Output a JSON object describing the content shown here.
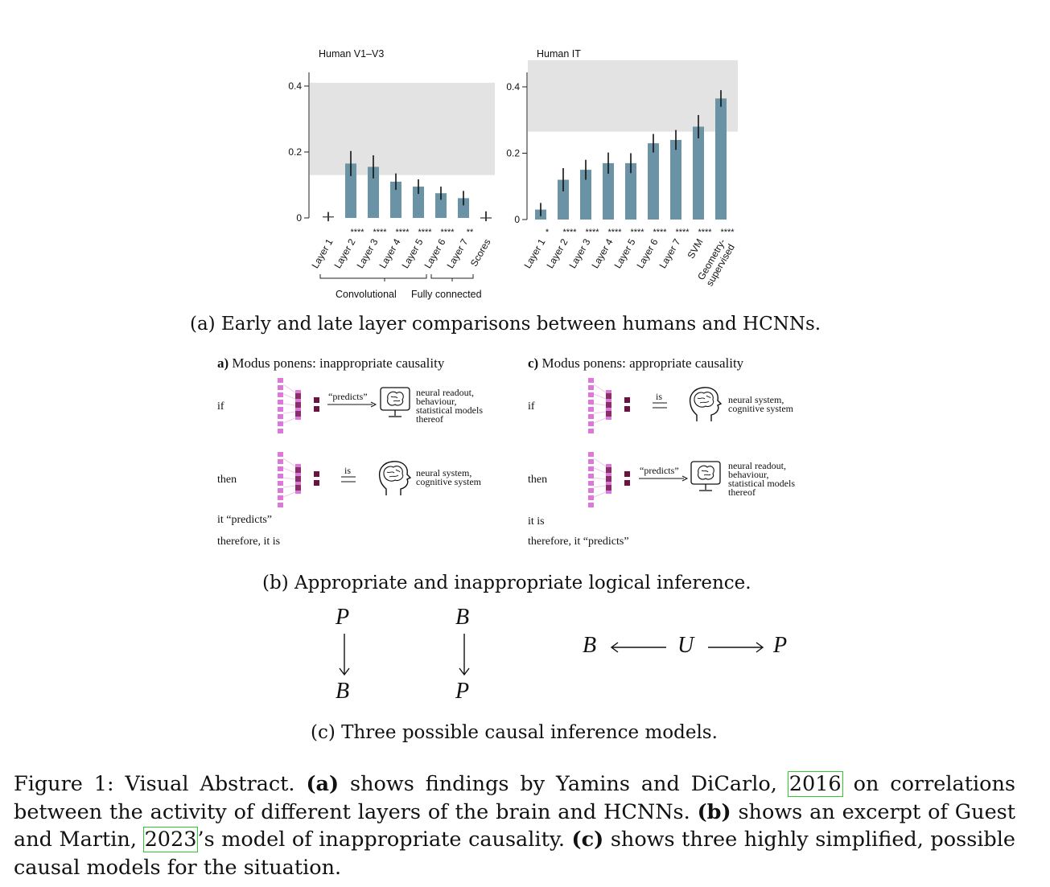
{
  "panel_a": {
    "chart_data": [
      {
        "type": "bar",
        "title": "Human V1–V3",
        "categories": [
          "Layer 1",
          "Layer 2",
          "Layer 3",
          "Layer 4",
          "Layer 5",
          "Layer 6",
          "Layer 7",
          "Scores"
        ],
        "values": [
          0.003,
          0.165,
          0.155,
          0.11,
          0.095,
          0.075,
          0.06,
          0.0
        ],
        "errors": [
          0.015,
          0.038,
          0.035,
          0.025,
          0.022,
          0.02,
          0.022,
          0.02
        ],
        "noise_ceiling": [
          0.13,
          0.41
        ],
        "ylim": [
          0,
          0.45
        ],
        "yticks": [
          "0",
          "0.2",
          "0.4"
        ],
        "significance": [
          "",
          "****",
          "****",
          "****",
          "****",
          "****",
          "**",
          ""
        ],
        "groups": [
          {
            "label": "Convolutional"
          },
          {
            "label": "Fully connected"
          }
        ],
        "bar_color": "#6b93a6",
        "ceiling_color": "#e3e3e3"
      },
      {
        "type": "bar",
        "title": "Human IT",
        "categories": [
          "Layer 1",
          "Layer 2",
          "Layer 3",
          "Layer 4",
          "Layer 5",
          "Layer 6",
          "Layer 7",
          "SVM",
          "Geometry-\nsupervised"
        ],
        "values": [
          0.03,
          0.12,
          0.15,
          0.17,
          0.17,
          0.23,
          0.24,
          0.28,
          0.365
        ],
        "errors": [
          0.02,
          0.035,
          0.03,
          0.032,
          0.03,
          0.028,
          0.03,
          0.035,
          0.025
        ],
        "noise_ceiling": [
          0.265,
          0.48
        ],
        "ylim": [
          0,
          0.45
        ],
        "yticks": [
          "0",
          "0.2",
          "0.4"
        ],
        "significance": [
          "*",
          "****",
          "****",
          "****",
          "****",
          "****",
          "****",
          "****",
          "****"
        ],
        "bar_color": "#6b93a6",
        "ceiling_color": "#e3e3e3"
      }
    ],
    "caption": "(a) Early and late layer comparisons between humans and HCNNs."
  },
  "panel_b": {
    "left": {
      "title_bold": "a)",
      "title_rest": "Modus ponens: inappropriate causality",
      "if_label": "if",
      "then_label": "then",
      "if_arrow": "“predicts”",
      "if_target": [
        "neural readout,",
        "behaviour,",
        "statistical models",
        "thereof"
      ],
      "then_arrow": "is",
      "then_target": [
        "neural system,",
        "cognitive system"
      ],
      "conclusion1": "it “predicts”",
      "conclusion2": "therefore, it is"
    },
    "right": {
      "title_bold": "c)",
      "title_rest": "Modus ponens: appropriate causality",
      "if_label": "if",
      "then_label": "then",
      "if_arrow": "is",
      "if_target": [
        "neural system,",
        "cognitive system"
      ],
      "then_arrow": "“predicts”",
      "then_target": [
        "neural readout,",
        "behaviour,",
        "statistical models",
        "thereof"
      ],
      "conclusion1": "it is",
      "conclusion2": "therefore, it “predicts”"
    },
    "colors": {
      "light": "#dc78dc",
      "dark": "#6b1340"
    },
    "caption": "(b) Appropriate and inappropriate logical inference."
  },
  "panel_c": {
    "model1": {
      "top": "P",
      "bottom": "B"
    },
    "model2": {
      "top": "B",
      "bottom": "P"
    },
    "model3": {
      "left": "B",
      "middle": "U",
      "right": "P"
    },
    "caption": "(c) Three possible causal inference models."
  },
  "figure_caption": {
    "label": "Figure 1:",
    "t1": "Visual Abstract.",
    "a_bold": "(a)",
    "t2": "shows findings by Yamins and DiCarlo,",
    "cite1": "2016",
    "t3": "on correlations between the activity of different layers of the brain and HCNNs.",
    "b_bold": "(b)",
    "t4": "shows an excerpt of Guest and Martin,",
    "cite2": "2023",
    "t5": "’s model of inappropriate causality.",
    "c_bold": "(c)",
    "t6": "shows three highly simplified, possible causal models for the situation."
  }
}
